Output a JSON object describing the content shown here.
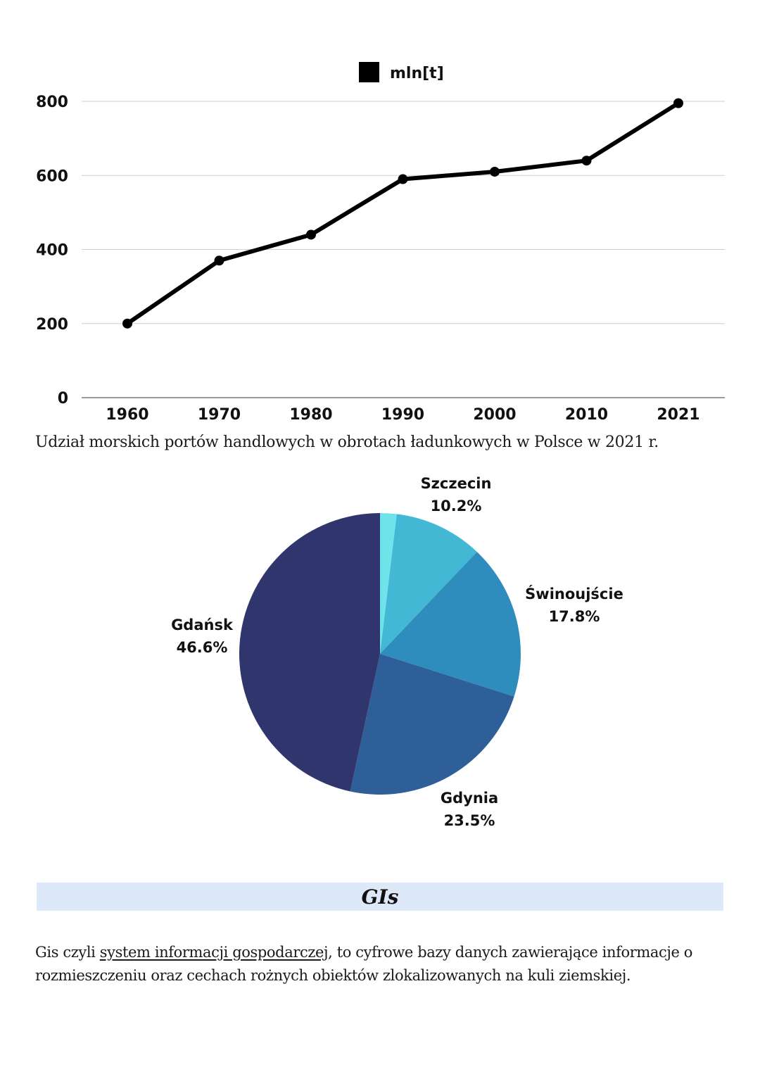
{
  "line_chart": {
    "legend_label": "mln[t]",
    "legend_color": "#000000"
  },
  "pie_caption": "Udział morskich portów handlowych w obrotach ładunkowych w Polsce w 2021 r.",
  "gis": {
    "heading": "GIs",
    "text_before": "Gis czyli ",
    "text_link": "system informacji gospodarczej",
    "text_after": ", to cyfrowe bazy danych zawierające informacje o rozmieszczeniu oraz cechach rożnych obiektów zlokalizowanych na kuli ziemskiej."
  },
  "chart_data": [
    {
      "type": "line",
      "title": "",
      "xlabel": "",
      "ylabel": "",
      "categories": [
        "1960",
        "1970",
        "1980",
        "1990",
        "2000",
        "2010",
        "2021"
      ],
      "series": [
        {
          "name": "mln[t]",
          "values": [
            200,
            370,
            440,
            590,
            610,
            640,
            795
          ],
          "color": "#000000"
        }
      ],
      "yticks": [
        0,
        200,
        400,
        600,
        800
      ],
      "ylim": [
        0,
        800
      ],
      "grid": true,
      "legend": "top-center"
    },
    {
      "type": "pie",
      "title": "Udział morskich portów handlowych w obrotach ładunkowych w Polsce w 2021 r.",
      "slices": [
        {
          "label": "",
          "value": 1.9,
          "color": "#6fe3ea"
        },
        {
          "label": "Szczecin",
          "value": 10.2,
          "display": "10.2%",
          "color": "#42b8d4"
        },
        {
          "label": "Świnoujście",
          "value": 17.8,
          "display": "17.8%",
          "color": "#2e8dbd"
        },
        {
          "label": "Gdynia",
          "value": 23.5,
          "display": "23.5%",
          "color": "#2e5f98"
        },
        {
          "label": "Gdańsk",
          "value": 46.6,
          "display": "46.6%",
          "color": "#30356e"
        }
      ],
      "start": "top",
      "direction": "clockwise"
    }
  ]
}
